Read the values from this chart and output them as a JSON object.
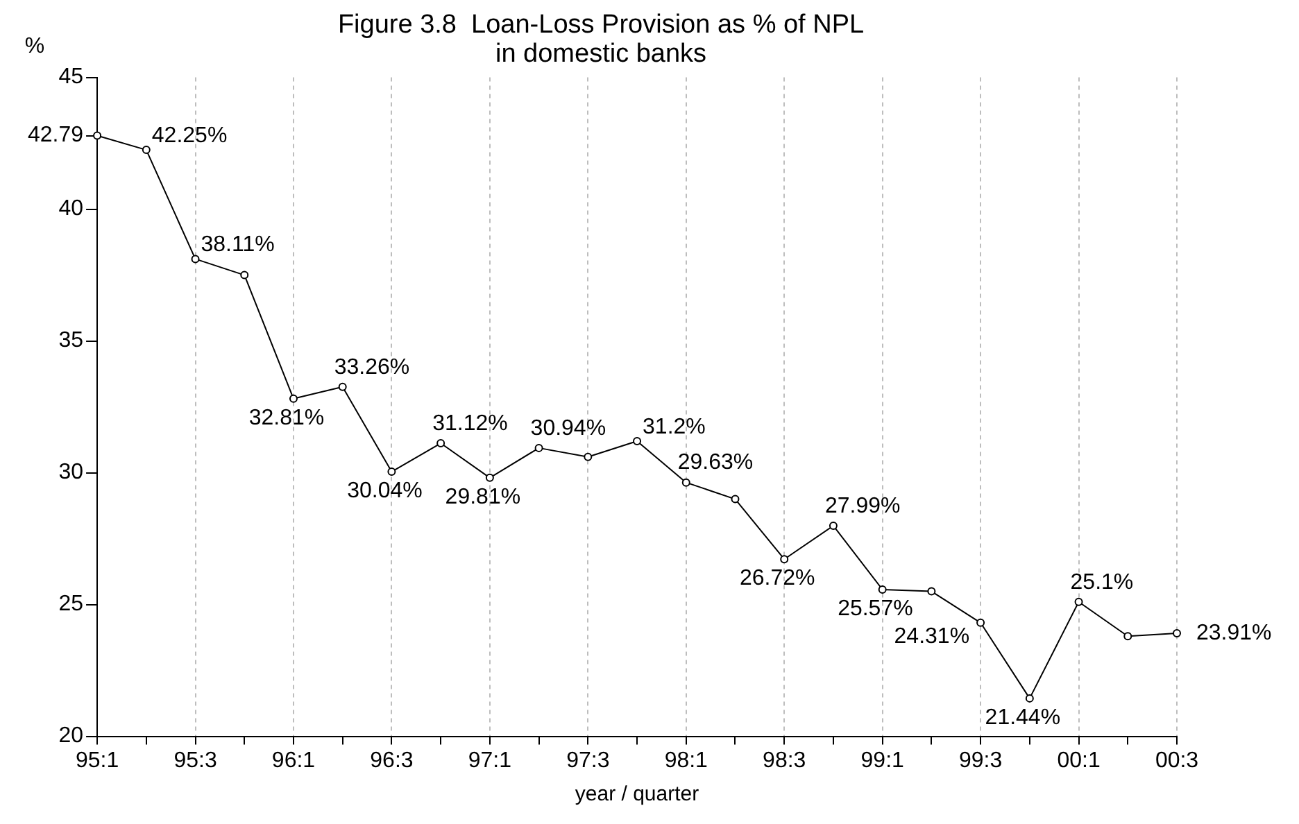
{
  "chart_data": {
    "type": "line",
    "title": [
      "Figure 3.8  Loan-Loss Provision as % of NPL",
      "in domestic banks"
    ],
    "ylabel": "%",
    "xlabel": "year / quarter",
    "categories": [
      "95:1",
      null,
      "95:3",
      null,
      "96:1",
      null,
      "96:3",
      null,
      "97:1",
      null,
      "97:3",
      null,
      "98:1",
      null,
      "98:3",
      null,
      "99:1",
      null,
      "99:3",
      null,
      "00:1",
      null,
      "00:3"
    ],
    "series": [
      {
        "color": "#000000",
        "values": [
          42.79,
          42.25,
          38.11,
          37.5,
          32.81,
          33.26,
          30.04,
          31.12,
          29.81,
          30.94,
          30.6,
          31.2,
          29.63,
          29.0,
          26.72,
          27.99,
          25.57,
          25.5,
          24.31,
          21.44,
          25.1,
          23.8,
          23.91
        ],
        "value_labels": [
          null,
          "42.25%",
          "38.11%",
          null,
          "32.81%",
          "33.26%",
          "30.04%",
          "31.12%",
          "29.81%",
          "30.94%",
          null,
          "31.2%",
          "29.63%",
          null,
          "26.72%",
          "27.99%",
          "25.57%",
          null,
          "24.31%",
          "21.44%",
          "25.1%",
          null,
          "23.91%"
        ]
      }
    ],
    "ylim": [
      20,
      45
    ],
    "yticks": [
      20,
      25,
      30,
      35,
      40,
      {
        "value": 42.79,
        "label": "42.79"
      },
      45
    ],
    "grid": "x",
    "marker": "circle",
    "line_style": "solid",
    "legend": false
  }
}
